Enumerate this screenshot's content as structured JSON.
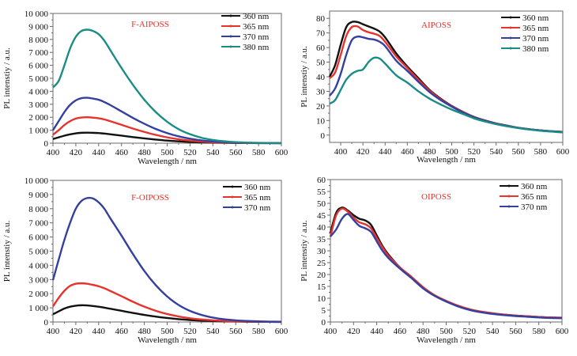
{
  "chart_data": [
    {
      "type": "line",
      "title": "F-AIPOSS",
      "xlabel": "Wavelength / nm",
      "ylabel": "PL intenstiy / a.u.",
      "xlim": [
        400,
        600
      ],
      "ylim": [
        0,
        10000
      ],
      "xticks": [
        400,
        420,
        440,
        460,
        480,
        500,
        520,
        540,
        560,
        580,
        600
      ],
      "yticks": [
        0,
        1000,
        2000,
        3000,
        4000,
        5000,
        6000,
        7000,
        8000,
        9000,
        10000
      ],
      "ytick_labels": [
        "0",
        "1 000",
        "2 000",
        "3 000",
        "4 000",
        "5 000",
        "6 000",
        "7 000",
        "8 000",
        "9 000",
        "10 000"
      ],
      "legend_position": "top-right",
      "x": [
        400,
        405,
        410,
        415,
        420,
        425,
        430,
        435,
        440,
        445,
        450,
        460,
        470,
        480,
        490,
        500,
        510,
        520,
        530,
        540,
        550,
        560,
        570,
        580,
        590,
        600
      ],
      "series": [
        {
          "name": "360 nm",
          "color": "#111111",
          "values": [
            320,
            450,
            580,
            680,
            760,
            800,
            810,
            800,
            780,
            740,
            690,
            580,
            470,
            370,
            280,
            200,
            140,
            95,
            60,
            40,
            25,
            15,
            10,
            6,
            4,
            2
          ]
        },
        {
          "name": "365 nm",
          "color": "#e8322c",
          "values": [
            650,
            1000,
            1400,
            1700,
            1900,
            1980,
            2000,
            1970,
            1920,
            1830,
            1700,
            1420,
            1130,
            870,
            640,
            450,
            300,
            195,
            120,
            75,
            45,
            27,
            16,
            9,
            5,
            3
          ]
        },
        {
          "name": "370 nm",
          "color": "#3340a0",
          "values": [
            1000,
            1700,
            2400,
            2950,
            3300,
            3470,
            3500,
            3440,
            3350,
            3170,
            2950,
            2450,
            1950,
            1500,
            1100,
            780,
            530,
            350,
            220,
            135,
            80,
            48,
            28,
            16,
            9,
            5
          ]
        },
        {
          "name": "380 nm",
          "color": "#1a8c86",
          "values": [
            4300,
            4800,
            6000,
            7300,
            8200,
            8650,
            8750,
            8650,
            8400,
            7900,
            7200,
            5800,
            4500,
            3350,
            2400,
            1650,
            1080,
            690,
            420,
            250,
            145,
            80,
            45,
            25,
            14,
            8
          ]
        }
      ]
    },
    {
      "type": "line",
      "title": "AIPOSS",
      "xlabel": "Wavelength / nm",
      "ylabel": "PL intenstiy / a.u.",
      "xlim": [
        390,
        600
      ],
      "ylim": [
        -5,
        85
      ],
      "xticks": [
        400,
        420,
        440,
        460,
        480,
        500,
        520,
        540,
        560,
        580,
        600
      ],
      "yticks": [
        0,
        10,
        20,
        30,
        40,
        50,
        60,
        70,
        80
      ],
      "ytick_labels": [
        "0",
        "10",
        "20",
        "30",
        "40",
        "50",
        "60",
        "70",
        "80"
      ],
      "legend_position": "top-right",
      "x": [
        390,
        395,
        400,
        405,
        410,
        415,
        420,
        425,
        430,
        435,
        440,
        450,
        460,
        470,
        480,
        490,
        500,
        510,
        520,
        530,
        540,
        550,
        560,
        570,
        580,
        590,
        600
      ],
      "series": [
        {
          "name": "360 nm",
          "color": "#111111",
          "values": [
            40,
            48,
            62,
            74,
            77.5,
            77.5,
            76,
            74.5,
            73,
            71,
            67,
            56,
            47,
            39,
            31,
            25,
            20,
            16,
            12.5,
            10,
            8,
            6.5,
            5,
            4,
            3.2,
            2.6,
            2.2
          ]
        },
        {
          "name": "365 nm",
          "color": "#e8322c",
          "values": [
            39,
            43,
            55,
            68,
            74,
            74.5,
            72,
            70.5,
            69.5,
            68,
            64,
            54,
            46,
            38,
            30.5,
            24.5,
            19.8,
            15.8,
            12.3,
            9.8,
            7.9,
            6.4,
            5,
            4,
            3.2,
            2.6,
            2.2
          ]
        },
        {
          "name": "370 nm",
          "color": "#3340a0",
          "values": [
            27,
            32,
            42,
            55,
            65,
            67.5,
            67,
            66,
            65.5,
            64,
            61,
            51,
            44,
            36.5,
            29.5,
            24,
            19.5,
            15.5,
            12.2,
            9.7,
            7.8,
            6.3,
            5,
            4,
            3.2,
            2.6,
            2.1
          ]
        },
        {
          "name": "380 nm",
          "color": "#1a8c86",
          "values": [
            21.5,
            24,
            31,
            38,
            42,
            44,
            45,
            50,
            53,
            52.5,
            49,
            41,
            36,
            30,
            25,
            21,
            17.5,
            14.5,
            11.5,
            9.3,
            7.5,
            6,
            4.8,
            3.8,
            3,
            2.4,
            1.8
          ]
        }
      ]
    },
    {
      "type": "line",
      "title": "F-OIPOSS",
      "xlabel": "Wavelength / nm",
      "ylabel": "PL intenstiy / a.u.",
      "xlim": [
        400,
        600
      ],
      "ylim": [
        0,
        10000
      ],
      "xticks": [
        400,
        420,
        440,
        460,
        480,
        500,
        520,
        540,
        560,
        580,
        600
      ],
      "yticks": [
        0,
        1000,
        2000,
        3000,
        4000,
        5000,
        6000,
        7000,
        8000,
        9000,
        10000
      ],
      "ytick_labels": [
        "0",
        "1 000",
        "2 000",
        "3 000",
        "4 000",
        "5 000",
        "6 000",
        "7 000",
        "8 000",
        "9 000",
        "10 000"
      ],
      "legend_position": "top-right",
      "x": [
        400,
        405,
        410,
        415,
        420,
        425,
        430,
        435,
        440,
        445,
        450,
        460,
        470,
        480,
        490,
        500,
        510,
        520,
        530,
        540,
        550,
        560,
        570,
        580,
        590,
        600
      ],
      "series": [
        {
          "name": "360 nm",
          "color": "#111111",
          "values": [
            550,
            750,
            950,
            1080,
            1150,
            1180,
            1170,
            1130,
            1080,
            1010,
            940,
            790,
            640,
            500,
            380,
            280,
            200,
            140,
            95,
            65,
            45,
            30,
            20,
            13,
            8,
            5
          ]
        },
        {
          "name": "365 nm",
          "color": "#e8322c",
          "values": [
            1100,
            1700,
            2200,
            2550,
            2700,
            2730,
            2700,
            2620,
            2520,
            2380,
            2200,
            1820,
            1430,
            1080,
            790,
            560,
            390,
            265,
            175,
            115,
            75,
            48,
            30,
            19,
            12,
            7
          ]
        },
        {
          "name": "370 nm",
          "color": "#3340a0",
          "values": [
            2950,
            4400,
            5800,
            7000,
            8000,
            8550,
            8750,
            8720,
            8450,
            8000,
            7350,
            6100,
            4800,
            3600,
            2600,
            1800,
            1200,
            780,
            500,
            310,
            190,
            115,
            70,
            42,
            25,
            15
          ]
        }
      ]
    },
    {
      "type": "line",
      "title": "OIPOSS",
      "xlabel": "Wavelength / nm",
      "ylabel": "PL intenstiy / a.u.",
      "xlim": [
        400,
        600
      ],
      "ylim": [
        0,
        60
      ],
      "xticks": [
        400,
        420,
        440,
        460,
        480,
        500,
        520,
        540,
        560,
        580,
        600
      ],
      "yticks": [
        0,
        5,
        10,
        15,
        20,
        25,
        30,
        35,
        40,
        45,
        50,
        55,
        60
      ],
      "ytick_labels": [
        "0",
        "5",
        "10",
        "15",
        "20",
        "25",
        "30",
        "35",
        "40",
        "45",
        "50",
        "55",
        "60"
      ],
      "legend_position": "top-right",
      "x": [
        400,
        405,
        410,
        415,
        420,
        425,
        430,
        435,
        440,
        445,
        450,
        460,
        470,
        480,
        490,
        500,
        510,
        520,
        530,
        540,
        550,
        560,
        570,
        580,
        590,
        600
      ],
      "series": [
        {
          "name": "360 nm",
          "color": "#111111",
          "values": [
            37.5,
            46,
            48.2,
            47,
            45,
            43.5,
            42.8,
            41,
            36.5,
            32,
            28.5,
            23,
            19,
            14.5,
            11.2,
            8.8,
            6.8,
            5.3,
            4.3,
            3.6,
            3.1,
            2.7,
            2.4,
            2.1,
            1.9,
            1.8
          ]
        },
        {
          "name": "365 nm",
          "color": "#e8322c",
          "values": [
            36,
            45,
            47.8,
            46.5,
            44,
            42,
            41.2,
            39.5,
            35.5,
            31.5,
            28,
            23,
            19,
            14.7,
            11.3,
            8.9,
            6.9,
            5.4,
            4.4,
            3.7,
            3.1,
            2.7,
            2.4,
            2.1,
            1.9,
            1.8
          ]
        },
        {
          "name": "370 nm",
          "color": "#3340a0",
          "values": [
            36,
            39,
            43.5,
            45.5,
            43,
            40.5,
            39.5,
            38,
            34,
            30,
            27,
            22.5,
            18.5,
            14.2,
            11,
            8.6,
            6.6,
            5.1,
            4.1,
            3.4,
            2.9,
            2.5,
            2.2,
            1.9,
            1.7,
            1.6
          ]
        }
      ]
    }
  ]
}
